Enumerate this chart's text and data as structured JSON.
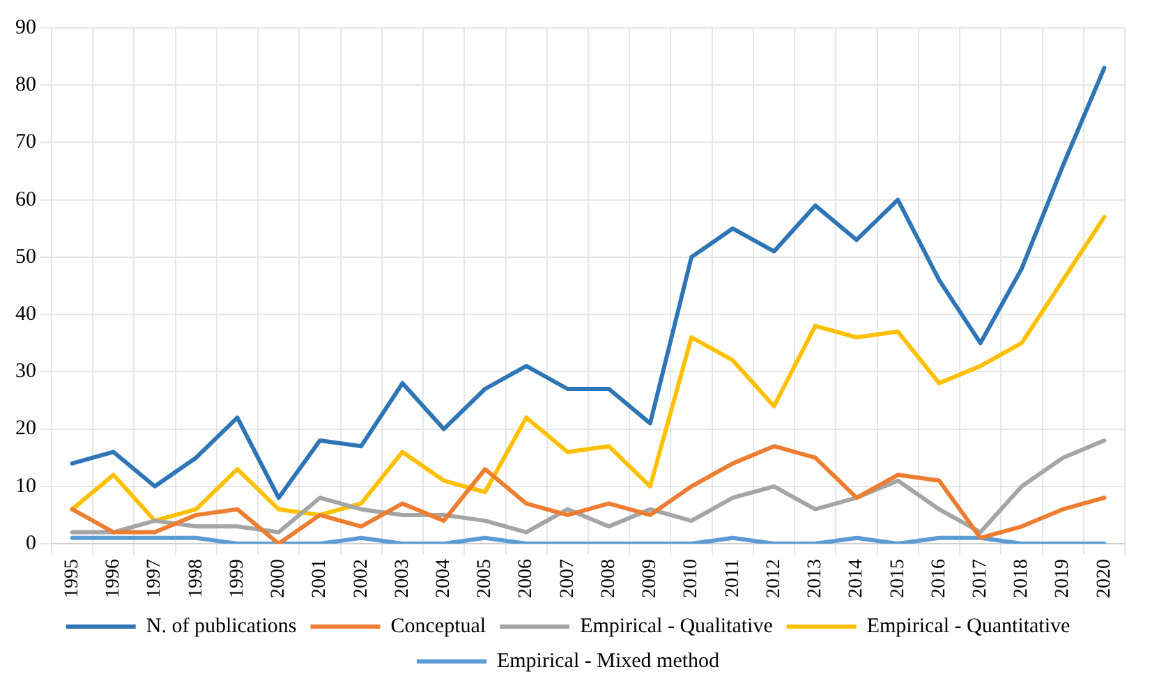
{
  "chart_data": {
    "type": "line",
    "categories": [
      "1995",
      "1996",
      "1997",
      "1998",
      "1999",
      "2000",
      "2001",
      "2002",
      "2003",
      "2004",
      "2005",
      "2006",
      "2007",
      "2008",
      "2009",
      "2010",
      "2011",
      "2012",
      "2013",
      "2014",
      "2015",
      "2016",
      "2017",
      "2018",
      "2019",
      "2020"
    ],
    "series": [
      {
        "name": "N. of publications",
        "color": "#2e75b6",
        "values": [
          14,
          16,
          10,
          15,
          22,
          8,
          18,
          17,
          28,
          20,
          27,
          31,
          27,
          27,
          21,
          50,
          55,
          51,
          59,
          53,
          60,
          46,
          35,
          48,
          66,
          83
        ]
      },
      {
        "name": "Conceptual",
        "color": "#ed7d31",
        "values": [
          6,
          2,
          2,
          5,
          6,
          0,
          5,
          3,
          7,
          4,
          13,
          7,
          5,
          7,
          5,
          10,
          14,
          17,
          15,
          8,
          12,
          11,
          1,
          3,
          6,
          8
        ]
      },
      {
        "name": "Empirical - Qualitative",
        "color": "#a5a5a5",
        "values": [
          2,
          2,
          4,
          3,
          3,
          2,
          8,
          6,
          5,
          5,
          4,
          2,
          6,
          3,
          6,
          4,
          8,
          10,
          6,
          8,
          11,
          6,
          2,
          10,
          15,
          18
        ]
      },
      {
        "name": "Empirical - Quantitative",
        "color": "#ffc000",
        "values": [
          6,
          12,
          4,
          6,
          13,
          6,
          5,
          7,
          16,
          11,
          9,
          22,
          16,
          17,
          10,
          36,
          32,
          24,
          38,
          36,
          37,
          28,
          31,
          35,
          46,
          57
        ]
      },
      {
        "name": "Empirical - Mixed method",
        "color": "#5b9bd5",
        "values": [
          1,
          1,
          1,
          1,
          0,
          0,
          0,
          1,
          0,
          0,
          1,
          0,
          0,
          0,
          0,
          0,
          1,
          0,
          0,
          1,
          0,
          1,
          1,
          0,
          0,
          0
        ]
      }
    ],
    "ylim": [
      0,
      90
    ],
    "yticks": [
      0,
      10,
      20,
      30,
      40,
      50,
      60,
      70,
      80,
      90
    ],
    "grid": true,
    "legend": "bottom",
    "marker": "none",
    "line_style": "solid"
  }
}
